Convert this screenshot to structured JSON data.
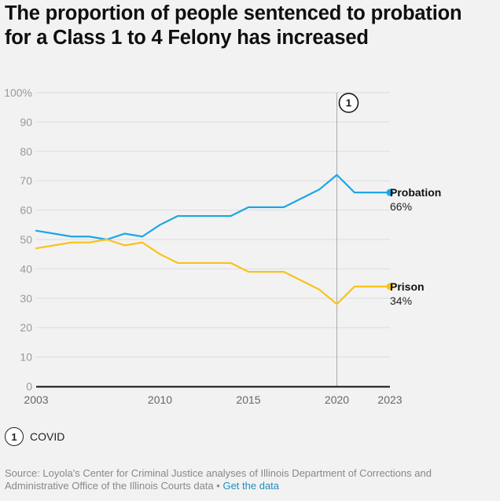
{
  "title": "The proportion of people sentenced to probation for a Class 1 to 4 Felony has increased",
  "footnote": {
    "number": "1",
    "label": "COVID"
  },
  "source": {
    "text": "Source: Loyola's Center for Criminal Justice analyses of Illinois Department of Corrections and Administrative Office of the Illinois Courts data",
    "separator": "•",
    "link_label": "Get the data"
  },
  "chart_data": {
    "type": "line",
    "title": "The proportion of people sentenced to probation for a Class 1 to 4 Felony has increased",
    "xlabel": "",
    "ylabel": "",
    "xlim": [
      2003,
      2023
    ],
    "ylim": [
      0,
      100
    ],
    "grid": true,
    "y_ticks": [
      0,
      10,
      20,
      30,
      40,
      50,
      60,
      70,
      80,
      90,
      100
    ],
    "y_tick_labels": [
      "0",
      "10",
      "20",
      "30",
      "40",
      "50",
      "60",
      "70",
      "80",
      "90",
      "100%"
    ],
    "x_ticks": [
      2003,
      2010,
      2015,
      2020,
      2023
    ],
    "x": [
      2003,
      2004,
      2005,
      2006,
      2007,
      2008,
      2009,
      2010,
      2011,
      2012,
      2013,
      2014,
      2015,
      2016,
      2017,
      2018,
      2019,
      2020,
      2021,
      2022,
      2023
    ],
    "series": [
      {
        "name": "Probation",
        "color": "#1ba7e4",
        "end_label": "66%",
        "values": [
          53,
          52,
          51,
          51,
          50,
          52,
          51,
          55,
          58,
          58,
          58,
          58,
          61,
          61,
          61,
          64,
          67,
          72,
          66,
          66,
          66
        ]
      },
      {
        "name": "Prison",
        "color": "#f8c31c",
        "end_label": "34%",
        "values": [
          47,
          48,
          49,
          49,
          50,
          48,
          49,
          45,
          42,
          42,
          42,
          42,
          39,
          39,
          39,
          36,
          33,
          28,
          34,
          34,
          34
        ]
      }
    ],
    "annotations": [
      {
        "x": 2020,
        "label": "1"
      }
    ]
  }
}
